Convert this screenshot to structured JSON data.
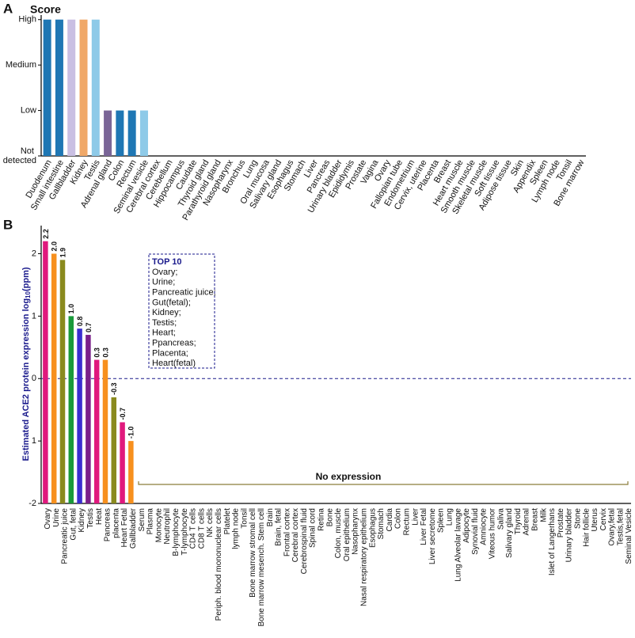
{
  "chart_data": [
    {
      "type": "bar",
      "panel": "A",
      "title": "Score",
      "categories": [
        "Duodenum",
        "Small intestine",
        "Gallbladder",
        "Kidney",
        "Testis",
        "Adrenal gland",
        "Colon",
        "Rectum",
        "Seminal vesicle",
        "Cerebral cortex",
        "Cerebellum",
        "Hippocampus",
        "Caudate",
        "Thyroid gland",
        "Parathyroid gland",
        "Nasopharynx",
        "Bronchus",
        "Lung",
        "Oral mucosa",
        "Salivary gland",
        "Esophagus",
        "Stomach",
        "Liver",
        "Pancreas",
        "Urinary bladder",
        "Epididymis",
        "Prostate",
        "Vagina",
        "Ovary",
        "Fallopian tube",
        "Endometrium",
        "Cervix, uterine",
        "Placenta",
        "Breast",
        "Heart muscle",
        "Smooth muscle",
        "Skeletal muscle",
        "Soft tissue",
        "Adipose tissue",
        "Skin",
        "Appendix",
        "Spleen",
        "Lymph node",
        "Tonsil",
        "Bone marrow"
      ],
      "values": [
        3,
        3,
        3,
        3,
        3,
        1,
        1,
        1,
        1,
        0,
        0,
        0,
        0,
        0,
        0,
        0,
        0,
        0,
        0,
        0,
        0,
        0,
        0,
        0,
        0,
        0,
        0,
        0,
        0,
        0,
        0,
        0,
        0,
        0,
        0,
        0,
        0,
        0,
        0,
        0,
        0,
        0,
        0,
        0,
        0
      ],
      "colors": [
        "#1f77b4",
        "#1f77b4",
        "#c9bfe3",
        "#f0a868",
        "#8ecae8",
        "#7a6597",
        "#1f77b4",
        "#1f77b4",
        "#8ecae8",
        null,
        null,
        null,
        null,
        null,
        null,
        null,
        null,
        null,
        null,
        null,
        null,
        null,
        null,
        null,
        null,
        null,
        null,
        null,
        null,
        null,
        null,
        null,
        null,
        null,
        null,
        null,
        null,
        null,
        null,
        null,
        null,
        null,
        null,
        null,
        null
      ],
      "ylim": [
        0,
        3.1
      ],
      "yticks": [
        {
          "value": 0,
          "label": "Not detected"
        },
        {
          "value": 1,
          "label": "Low"
        },
        {
          "value": 2,
          "label": "Medium"
        },
        {
          "value": 3,
          "label": "High"
        }
      ]
    },
    {
      "type": "bar",
      "panel": "B",
      "ylabel": "Estimated ACE2 protein expression log",
      "ylabel_sub": "10",
      "ylabel_tail": "(ppm)",
      "categories": [
        "Ovary",
        "Urine",
        "Pancreatic juice",
        "Gut, fetal",
        "Kidney",
        "Testis",
        "Heat",
        "Pancreas",
        "placenta",
        "Heart Fetal",
        "Gallbladder",
        "Serum",
        "Plasma",
        "Monocyte",
        "Neutrophil",
        "B-lymphocyte",
        "T-lymphocyte",
        "CD4 T cells",
        "CD8 T cells",
        "NK cells",
        "Periph. blood mononuclear cells",
        "Platelet",
        "lymph node",
        "Tonsil",
        "Bone marrow stromal cell",
        "Bone marrow mesench. Stem cell",
        "Brain",
        "Brain, fetal",
        "Frontal cortex",
        "Cerebral cortex",
        "Cerebrospinal fluid",
        "Spinal cord",
        "Retina",
        "Bone",
        "Colon, muscle",
        "Oral epithelium",
        "Nasopharynx",
        "Nasal respiratory epithelium",
        "Esophagus",
        "Stomach",
        "Cardia",
        "Colon",
        "Rectum",
        "Liver",
        "Liver Fetal",
        "Liver secretome",
        "Spleen",
        "Lung",
        "Lung Alveolar lavage",
        "Adipocyte",
        "Synovial fluid",
        "Amniocyte",
        "Viteous humor",
        "Saliva",
        "Salivary gland",
        "Thyroid",
        "Adrenal",
        "Breast",
        "Milk",
        "Islet of Langerhans",
        "Prostate",
        "Urinary bladder",
        "Stone",
        "Hair follicle",
        "Uterus",
        "Cervix",
        "Ovary,fetal",
        "Testis,fetal",
        "Seminal Vesicle"
      ],
      "values": [
        2.2,
        2.0,
        1.9,
        1.0,
        0.8,
        0.7,
        0.3,
        0.3,
        -0.3,
        -0.7,
        -1.0,
        null,
        null,
        null,
        null,
        null,
        null,
        null,
        null,
        null,
        null,
        null,
        null,
        null,
        null,
        null,
        null,
        null,
        null,
        null,
        null,
        null,
        null,
        null,
        null,
        null,
        null,
        null,
        null,
        null,
        null,
        null,
        null,
        null,
        null,
        null,
        null,
        null,
        null,
        null,
        null,
        null,
        null,
        null,
        null,
        null,
        null,
        null,
        null,
        null,
        null,
        null,
        null,
        null,
        null,
        null,
        null,
        null,
        null
      ],
      "value_labels": [
        "2.2",
        "2.0",
        "1.9",
        "1.0",
        "0.8",
        "0.7",
        "0.3",
        "0.3",
        "-0.3",
        "-0.7",
        "-1.0",
        null,
        null,
        null,
        null,
        null,
        null,
        null,
        null,
        null,
        null,
        null,
        null,
        null,
        null,
        null,
        null,
        null,
        null,
        null,
        null,
        null,
        null,
        null,
        null,
        null,
        null,
        null,
        null,
        null,
        null,
        null,
        null,
        null,
        null,
        null,
        null,
        null,
        null,
        null,
        null,
        null,
        null,
        null,
        null,
        null,
        null,
        null,
        null,
        null,
        null,
        null,
        null,
        null,
        null,
        null,
        null,
        null,
        null
      ],
      "colors": [
        "#e0197d",
        "#f7901e",
        "#8a8a1e",
        "#1a9a3a",
        "#3a2ed0",
        "#7a1f8a",
        "#e0197d",
        "#f7901e",
        "#8a8a1e",
        "#e0197d",
        "#f7901e",
        null,
        null,
        null,
        null,
        null,
        null,
        null,
        null,
        null,
        null,
        null,
        null,
        null,
        null,
        null,
        null,
        null,
        null,
        null,
        null,
        null,
        null,
        null,
        null,
        null,
        null,
        null,
        null,
        null,
        null,
        null,
        null,
        null,
        null,
        null,
        null,
        null,
        null,
        null,
        null,
        null,
        null,
        null,
        null,
        null,
        null,
        null,
        null,
        null,
        null,
        null,
        null,
        null,
        null,
        null,
        null,
        null,
        null
      ],
      "ylim": [
        -2,
        2.45
      ],
      "yticks": [
        -2,
        {
          "value": -1,
          "label": "1"
        },
        0,
        1,
        2
      ],
      "refline": 0,
      "top_title": "TOP 10",
      "top_list": [
        "Ovary;",
        "Urine;",
        "Pancreatic juice;",
        "Gut(fetal);",
        "Kidney;",
        "Testis;",
        "Heart;",
        "Ppancreas;",
        "Placenta;",
        "Heart(fetal)"
      ],
      "no_expression": "No expression"
    }
  ]
}
